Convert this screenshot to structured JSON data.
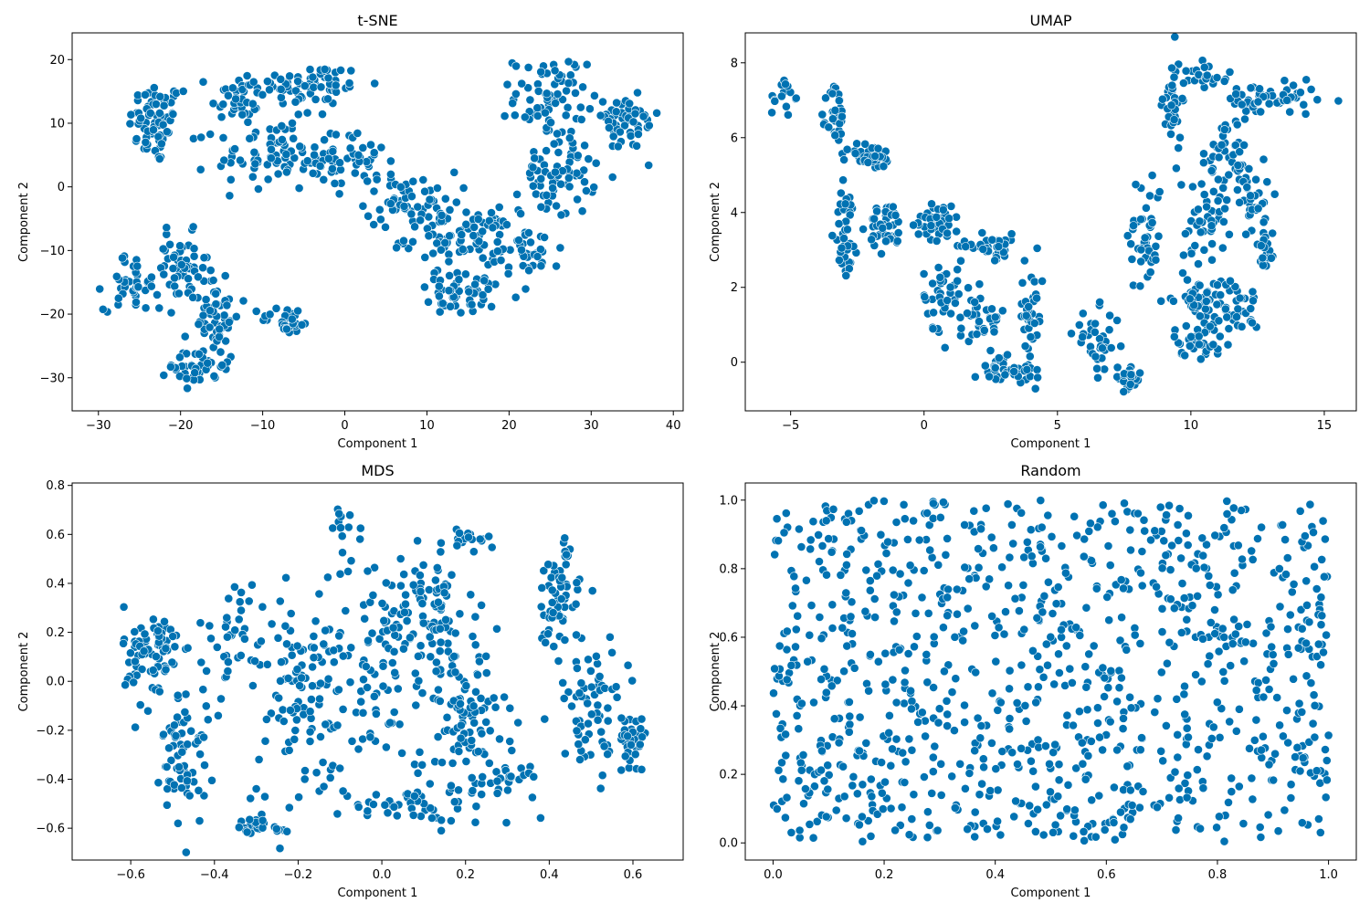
{
  "figure": {
    "point_color": "#0072b2",
    "point_edge": "#ffffff"
  },
  "chart_data": [
    {
      "type": "scatter",
      "title": "t-SNE",
      "xlabel": "Component 1",
      "ylabel": "Component 2",
      "xlim": [
        -33.2,
        41.2
      ],
      "ylim": [
        -35.2,
        24.2
      ],
      "xticks": [
        -30,
        -20,
        -10,
        0,
        10,
        20,
        30,
        40
      ],
      "yticks": [
        -30,
        -20,
        -10,
        0,
        10,
        20
      ],
      "xtick_labels": [
        "−30",
        "−20",
        "−10",
        "0",
        "10",
        "20",
        "30",
        "40"
      ],
      "ytick_labels": [
        "−30",
        "−20",
        "−10",
        "0",
        "10",
        "20"
      ],
      "clusters": [
        {
          "cx": -23,
          "cy": 10,
          "rx": 3,
          "ry": 6,
          "n": 70
        },
        {
          "cx": -13,
          "cy": 14,
          "rx": 3,
          "ry": 4,
          "n": 40
        },
        {
          "cx": -4,
          "cy": 16,
          "rx": 6,
          "ry": 3,
          "n": 70
        },
        {
          "cx": -8,
          "cy": 5,
          "rx": 7,
          "ry": 5,
          "n": 90
        },
        {
          "cx": 1,
          "cy": 4,
          "rx": 4,
          "ry": 4,
          "n": 40
        },
        {
          "cx": 8,
          "cy": -2,
          "rx": 5,
          "ry": 4,
          "n": 60
        },
        {
          "cx": 14,
          "cy": -8,
          "rx": 6,
          "ry": 4,
          "n": 80
        },
        {
          "cx": 15,
          "cy": -17,
          "rx": 6,
          "ry": 3,
          "n": 50
        },
        {
          "cx": 22,
          "cy": -10,
          "rx": 4,
          "ry": 4,
          "n": 40
        },
        {
          "cx": 26,
          "cy": 2,
          "rx": 4,
          "ry": 6,
          "n": 70
        },
        {
          "cx": 25,
          "cy": 14,
          "rx": 4,
          "ry": 6,
          "n": 70
        },
        {
          "cx": 34,
          "cy": 10,
          "rx": 4,
          "ry": 4,
          "n": 50
        },
        {
          "cx": -26,
          "cy": -15,
          "rx": 3,
          "ry": 4,
          "n": 40
        },
        {
          "cx": -20,
          "cy": -13,
          "rx": 3,
          "ry": 5,
          "n": 50
        },
        {
          "cx": -16,
          "cy": -20,
          "rx": 3,
          "ry": 6,
          "n": 60
        },
        {
          "cx": -18,
          "cy": -28,
          "rx": 3,
          "ry": 3,
          "n": 40
        },
        {
          "cx": -7,
          "cy": -21,
          "rx": 3,
          "ry": 2,
          "n": 30
        }
      ]
    },
    {
      "type": "scatter",
      "title": "UMAP",
      "xlabel": "Component 1",
      "ylabel": "Component 2",
      "xlim": [
        -6.7,
        16.2
      ],
      "ylim": [
        -1.3,
        8.8
      ],
      "xticks": [
        -5,
        0,
        5,
        10,
        15
      ],
      "yticks": [
        0,
        2,
        4,
        6,
        8
      ],
      "xtick_labels": [
        "−5",
        "0",
        "5",
        "10",
        "15"
      ],
      "ytick_labels": [
        "0",
        "2",
        "4",
        "6",
        "8"
      ],
      "clusters": [
        {
          "cx": -5.3,
          "cy": 7.1,
          "rx": 0.4,
          "ry": 0.5,
          "n": 15
        },
        {
          "cx": -3.3,
          "cy": 6.5,
          "rx": 0.3,
          "ry": 0.9,
          "n": 40
        },
        {
          "cx": -2,
          "cy": 5.5,
          "rx": 0.8,
          "ry": 0.3,
          "n": 40
        },
        {
          "cx": -2.9,
          "cy": 3.5,
          "rx": 0.4,
          "ry": 1.2,
          "n": 40
        },
        {
          "cx": -1.4,
          "cy": 3.6,
          "rx": 0.6,
          "ry": 0.6,
          "n": 40
        },
        {
          "cx": 0.5,
          "cy": 3.8,
          "rx": 0.8,
          "ry": 0.5,
          "n": 40
        },
        {
          "cx": 2.5,
          "cy": 3.1,
          "rx": 1,
          "ry": 0.3,
          "n": 40
        },
        {
          "cx": 0.6,
          "cy": 1.8,
          "rx": 0.6,
          "ry": 0.8,
          "n": 40
        },
        {
          "cx": 2.2,
          "cy": 1.2,
          "rx": 0.8,
          "ry": 0.7,
          "n": 40
        },
        {
          "cx": 4,
          "cy": 1.2,
          "rx": 0.4,
          "ry": 1.3,
          "n": 40
        },
        {
          "cx": 3,
          "cy": -0.2,
          "rx": 1,
          "ry": 0.3,
          "n": 35
        },
        {
          "cx": 6.5,
          "cy": 0.5,
          "rx": 0.8,
          "ry": 0.8,
          "n": 35
        },
        {
          "cx": 7.6,
          "cy": -0.4,
          "rx": 0.5,
          "ry": 0.3,
          "n": 25
        },
        {
          "cx": 8.3,
          "cy": 3.5,
          "rx": 0.6,
          "ry": 1.5,
          "n": 45
        },
        {
          "cx": 9.3,
          "cy": 6.8,
          "rx": 0.3,
          "ry": 1.3,
          "n": 40
        },
        {
          "cx": 10.6,
          "cy": 7.7,
          "rx": 0.8,
          "ry": 0.3,
          "n": 25
        },
        {
          "cx": 13,
          "cy": 7,
          "rx": 1.6,
          "ry": 0.4,
          "n": 60
        },
        {
          "cx": 11.3,
          "cy": 5.5,
          "rx": 0.8,
          "ry": 1,
          "n": 40
        },
        {
          "cx": 12.3,
          "cy": 4.5,
          "rx": 0.6,
          "ry": 1,
          "n": 35
        },
        {
          "cx": 10.5,
          "cy": 3.8,
          "rx": 0.8,
          "ry": 1,
          "n": 40
        },
        {
          "cx": 10.2,
          "cy": 1.7,
          "rx": 0.8,
          "ry": 0.5,
          "n": 40
        },
        {
          "cx": 11.6,
          "cy": 1.5,
          "rx": 0.9,
          "ry": 0.7,
          "n": 40
        },
        {
          "cx": 10.3,
          "cy": 0.6,
          "rx": 0.9,
          "ry": 0.4,
          "n": 35
        },
        {
          "cx": 12.8,
          "cy": 3,
          "rx": 0.3,
          "ry": 1,
          "n": 20
        }
      ]
    },
    {
      "type": "scatter",
      "title": "MDS",
      "xlabel": "Component 1",
      "ylabel": "Component 2",
      "xlim": [
        -0.74,
        0.72
      ],
      "ylim": [
        -0.73,
        0.81
      ],
      "xticks": [
        -0.6,
        -0.4,
        -0.2,
        0.0,
        0.2,
        0.4,
        0.6
      ],
      "yticks": [
        -0.6,
        -0.4,
        -0.2,
        0.0,
        0.2,
        0.4,
        0.6,
        0.8
      ],
      "xtick_labels": [
        "−0.6",
        "−0.4",
        "−0.2",
        "0.0",
        "0.2",
        "0.4",
        "0.6"
      ],
      "ytick_labels": [
        "−0.6",
        "−0.4",
        "−0.2",
        "0.0",
        "0.2",
        "0.4",
        "0.6",
        "0.8"
      ],
      "clusters": [
        {
          "cx": -0.55,
          "cy": 0.1,
          "rx": 0.06,
          "ry": 0.2,
          "n": 80
        },
        {
          "cx": -0.47,
          "cy": -0.3,
          "rx": 0.05,
          "ry": 0.25,
          "n": 70
        },
        {
          "cx": -0.35,
          "cy": 0.2,
          "rx": 0.08,
          "ry": 0.2,
          "n": 40
        },
        {
          "cx": -0.2,
          "cy": -0.1,
          "rx": 0.12,
          "ry": 0.4,
          "n": 90
        },
        {
          "cx": 0.0,
          "cy": 0.1,
          "rx": 0.15,
          "ry": 0.4,
          "n": 120
        },
        {
          "cx": 0.12,
          "cy": 0.3,
          "rx": 0.08,
          "ry": 0.2,
          "n": 70
        },
        {
          "cx": 0.2,
          "cy": -0.15,
          "rx": 0.1,
          "ry": 0.3,
          "n": 90
        },
        {
          "cx": 0.1,
          "cy": -0.5,
          "rx": 0.2,
          "ry": 0.08,
          "n": 50
        },
        {
          "cx": 0.3,
          "cy": -0.4,
          "rx": 0.05,
          "ry": 0.05,
          "n": 25
        },
        {
          "cx": 0.42,
          "cy": 0.35,
          "rx": 0.05,
          "ry": 0.2,
          "n": 60
        },
        {
          "cx": 0.5,
          "cy": -0.1,
          "rx": 0.08,
          "ry": 0.25,
          "n": 70
        },
        {
          "cx": 0.6,
          "cy": -0.25,
          "rx": 0.05,
          "ry": 0.1,
          "n": 30
        },
        {
          "cx": 0.2,
          "cy": 0.58,
          "rx": 0.1,
          "ry": 0.05,
          "n": 20
        },
        {
          "cx": -0.1,
          "cy": 0.65,
          "rx": 0.04,
          "ry": 0.08,
          "n": 10
        },
        {
          "cx": -0.3,
          "cy": -0.6,
          "rx": 0.08,
          "ry": 0.04,
          "n": 25
        }
      ]
    },
    {
      "type": "scatter",
      "title": "Random",
      "xlabel": "Component 1",
      "ylabel": "Component 2",
      "xlim": [
        -0.05,
        1.05
      ],
      "ylim": [
        -0.05,
        1.05
      ],
      "xticks": [
        0.0,
        0.2,
        0.4,
        0.6,
        0.8,
        1.0
      ],
      "yticks": [
        0.0,
        0.2,
        0.4,
        0.6,
        0.8,
        1.0
      ],
      "xtick_labels": [
        "0.0",
        "0.2",
        "0.4",
        "0.6",
        "0.8",
        "1.0"
      ],
      "ytick_labels": [
        "0.0",
        "0.2",
        "0.4",
        "0.6",
        "0.8",
        "1.0"
      ],
      "uniform": {
        "xmin": 0,
        "xmax": 1,
        "ymin": 0,
        "ymax": 1,
        "n": 1000
      }
    }
  ]
}
